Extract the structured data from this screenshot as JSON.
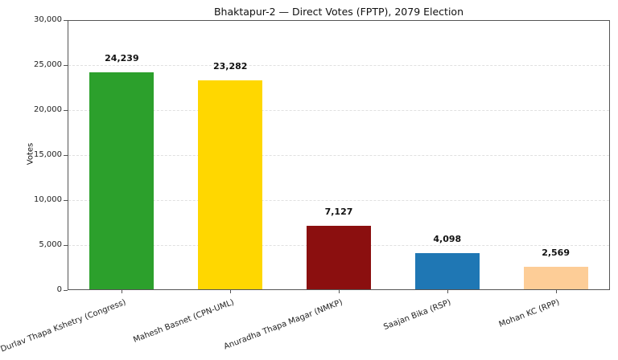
{
  "chart_data": {
    "type": "bar",
    "title": "Bhaktapur-2 — Direct Votes (FPTP), 2079 Election",
    "xlabel": "",
    "ylabel": "Votes",
    "categories": [
      "Durlav Thapa Kshetry (Congress)",
      "Mahesh Basnet (CPN-UML)",
      "Anuradha Thapa Magar (NMKP)",
      "Saajan Bika (RSP)",
      "Mohan KC (RPP)"
    ],
    "values": [
      24239,
      23282,
      7127,
      4098,
      2569
    ],
    "value_labels": [
      "24,239",
      "23,282",
      "7,127",
      "4,098",
      "2,569"
    ],
    "bar_colors": [
      "#2ca02c",
      "#ffd700",
      "#8b0f0f",
      "#1f77b4",
      "#fdcd97"
    ],
    "ylim": [
      0,
      30000
    ],
    "ytick_step": 5000,
    "ytick_labels": [
      "0",
      "5,000",
      "10,000",
      "15,000",
      "20,000",
      "25,000",
      "30,000"
    ],
    "grid": "horizontal-dashed",
    "legend": "none",
    "axis_color": "#555555",
    "grid_color": "#e0e0e0"
  }
}
